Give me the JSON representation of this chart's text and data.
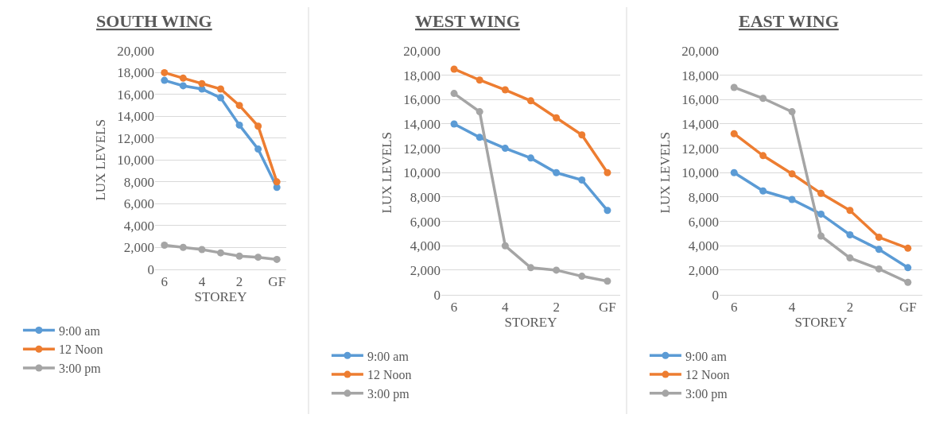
{
  "chart_data": [
    {
      "type": "line",
      "title": "SOUTH WING",
      "xlabel": "STOREY",
      "ylabel": "LUX LEVELS",
      "categories": [
        "6",
        null,
        "4",
        null,
        "2",
        null,
        "GF"
      ],
      "ylim": [
        0,
        20000
      ],
      "yticks": [
        {
          "value": 0,
          "label": "0"
        },
        {
          "value": 2000,
          "label": "2,000"
        },
        {
          "value": 4000,
          "label": "4,000"
        },
        {
          "value": 6000,
          "label": "6,000"
        },
        {
          "value": 8000,
          "label": "8,000"
        },
        {
          "value": 10000,
          "label": "10,000"
        },
        {
          "value": 12000,
          "label": "12,000"
        },
        {
          "value": 14000,
          "label": "14,000"
        },
        {
          "value": 16000,
          "label": "16,000"
        },
        {
          "value": 18000,
          "label": "18,000"
        },
        {
          "value": 20000,
          "label": "20,000"
        }
      ],
      "grid": "y",
      "legend": "bottom",
      "marker": "circle",
      "series": [
        {
          "name": "9:00 am",
          "color": "#5b9bd5",
          "values": [
            17300,
            16800,
            16500,
            15700,
            13200,
            11000,
            7500
          ]
        },
        {
          "name": "12 Noon",
          "color": "#ed7d31",
          "values": [
            18000,
            17500,
            17000,
            16500,
            15000,
            13100,
            8000
          ]
        },
        {
          "name": "3:00 pm",
          "color": "#a5a5a5",
          "values": [
            2200,
            2000,
            1800,
            1500,
            1200,
            1100,
            900
          ]
        }
      ]
    },
    {
      "type": "line",
      "title": "WEST WING",
      "xlabel": "STOREY",
      "ylabel": "LUX LEVELS",
      "categories": [
        "6",
        null,
        "4",
        null,
        "2",
        null,
        "GF"
      ],
      "ylim": [
        0,
        20000
      ],
      "yticks": [
        {
          "value": 0,
          "label": "0"
        },
        {
          "value": 2000,
          "label": "2,000"
        },
        {
          "value": 4000,
          "label": "4,000"
        },
        {
          "value": 6000,
          "label": "6,000"
        },
        {
          "value": 8000,
          "label": "8,000"
        },
        {
          "value": 10000,
          "label": "10,000"
        },
        {
          "value": 12000,
          "label": "12,000"
        },
        {
          "value": 14000,
          "label": "14,000"
        },
        {
          "value": 16000,
          "label": "16,000"
        },
        {
          "value": 18000,
          "label": "18,000"
        },
        {
          "value": 20000,
          "label": "20,000"
        }
      ],
      "grid": "y",
      "legend": "bottom",
      "marker": "circle",
      "series": [
        {
          "name": "9:00 am",
          "color": "#5b9bd5",
          "values": [
            14000,
            12900,
            12000,
            11200,
            10000,
            9400,
            6900
          ]
        },
        {
          "name": "12 Noon",
          "color": "#ed7d31",
          "values": [
            18500,
            17600,
            16800,
            15900,
            14500,
            13100,
            10000
          ]
        },
        {
          "name": "3:00 pm",
          "color": "#a5a5a5",
          "values": [
            16500,
            15000,
            4000,
            2200,
            2000,
            1500,
            1100
          ]
        }
      ]
    },
    {
      "type": "line",
      "title": "EAST WING",
      "xlabel": "STOREY",
      "ylabel": "LUX LEVELS",
      "categories": [
        "6",
        null,
        "4",
        null,
        "2",
        null,
        "GF"
      ],
      "ylim": [
        0,
        20000
      ],
      "yticks": [
        {
          "value": 0,
          "label": "0"
        },
        {
          "value": 2000,
          "label": "2,000"
        },
        {
          "value": 4000,
          "label": "4,000"
        },
        {
          "value": 6000,
          "label": "6,000"
        },
        {
          "value": 8000,
          "label": "8,000"
        },
        {
          "value": 10000,
          "label": "10,000"
        },
        {
          "value": 12000,
          "label": "12,000"
        },
        {
          "value": 14000,
          "label": "14,000"
        },
        {
          "value": 16000,
          "label": "16,000"
        },
        {
          "value": 18000,
          "label": "18,000"
        },
        {
          "value": 20000,
          "label": "20,000"
        }
      ],
      "grid": "y",
      "legend": "bottom",
      "marker": "circle",
      "series": [
        {
          "name": "9:00 am",
          "color": "#5b9bd5",
          "values": [
            10000,
            8500,
            7800,
            6600,
            4900,
            3700,
            2200
          ]
        },
        {
          "name": "12 Noon",
          "color": "#ed7d31",
          "values": [
            13200,
            11400,
            9900,
            8300,
            6900,
            4700,
            3800
          ]
        },
        {
          "name": "3:00 pm",
          "color": "#a5a5a5",
          "values": [
            17000,
            16100,
            15000,
            4800,
            3000,
            2100,
            1000
          ]
        }
      ]
    }
  ]
}
